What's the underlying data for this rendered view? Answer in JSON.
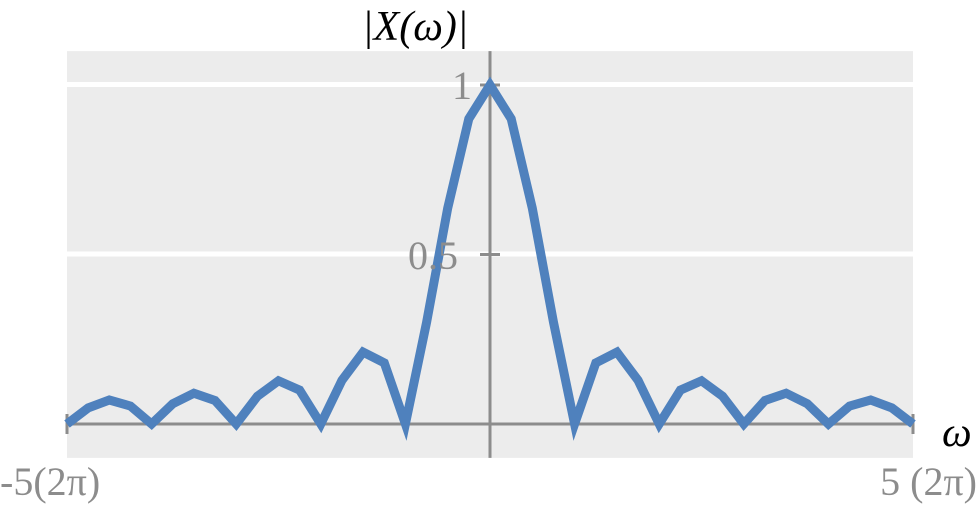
{
  "chart_data": {
    "type": "line",
    "title": "",
    "xlabel": "ω",
    "ylabel": "|X(ω)|",
    "xlim": [
      -5,
      5
    ],
    "ylim": [
      -0.1,
      1.1
    ],
    "x_tick_labels": [
      "-5(2π)",
      "5 (2π)"
    ],
    "y_ticks": [
      0.5,
      1
    ],
    "y_tick_labels": [
      "0.5",
      "1"
    ],
    "grid": "horizontal",
    "colors": {
      "line": "#4f81bd",
      "background": "#ececec",
      "axis": "#8c8c8c",
      "grid": "#ffffff"
    },
    "series": [
      {
        "x": [
          -5,
          -4.75,
          -4.5,
          -4.25,
          -4,
          -3.75,
          -3.5,
          -3.25,
          -3,
          -2.75,
          -2.5,
          -2.25,
          -2,
          -1.75,
          -1.5,
          -1.25,
          -1,
          -0.75,
          -0.5,
          -0.25,
          0,
          0.25,
          0.5,
          0.75,
          1,
          1.25,
          1.5,
          1.75,
          2,
          2.25,
          2.5,
          2.75,
          3,
          3.25,
          3.5,
          3.75,
          4,
          4.25,
          4.5,
          4.75,
          5
        ],
        "y": [
          0,
          0.0474,
          0.0707,
          0.053,
          0,
          0.06,
          0.0909,
          0.0693,
          0,
          0.0818,
          0.1273,
          0.1,
          0,
          0.1286,
          0.2122,
          0.1801,
          0,
          0.3001,
          0.6366,
          0.9003,
          1,
          0.9003,
          0.6366,
          0.3001,
          0,
          0.1801,
          0.2122,
          0.1286,
          0,
          0.1,
          0.1273,
          0.0818,
          0,
          0.0693,
          0.0909,
          0.06,
          0,
          0.053,
          0.0707,
          0.0474,
          0
        ]
      }
    ]
  }
}
